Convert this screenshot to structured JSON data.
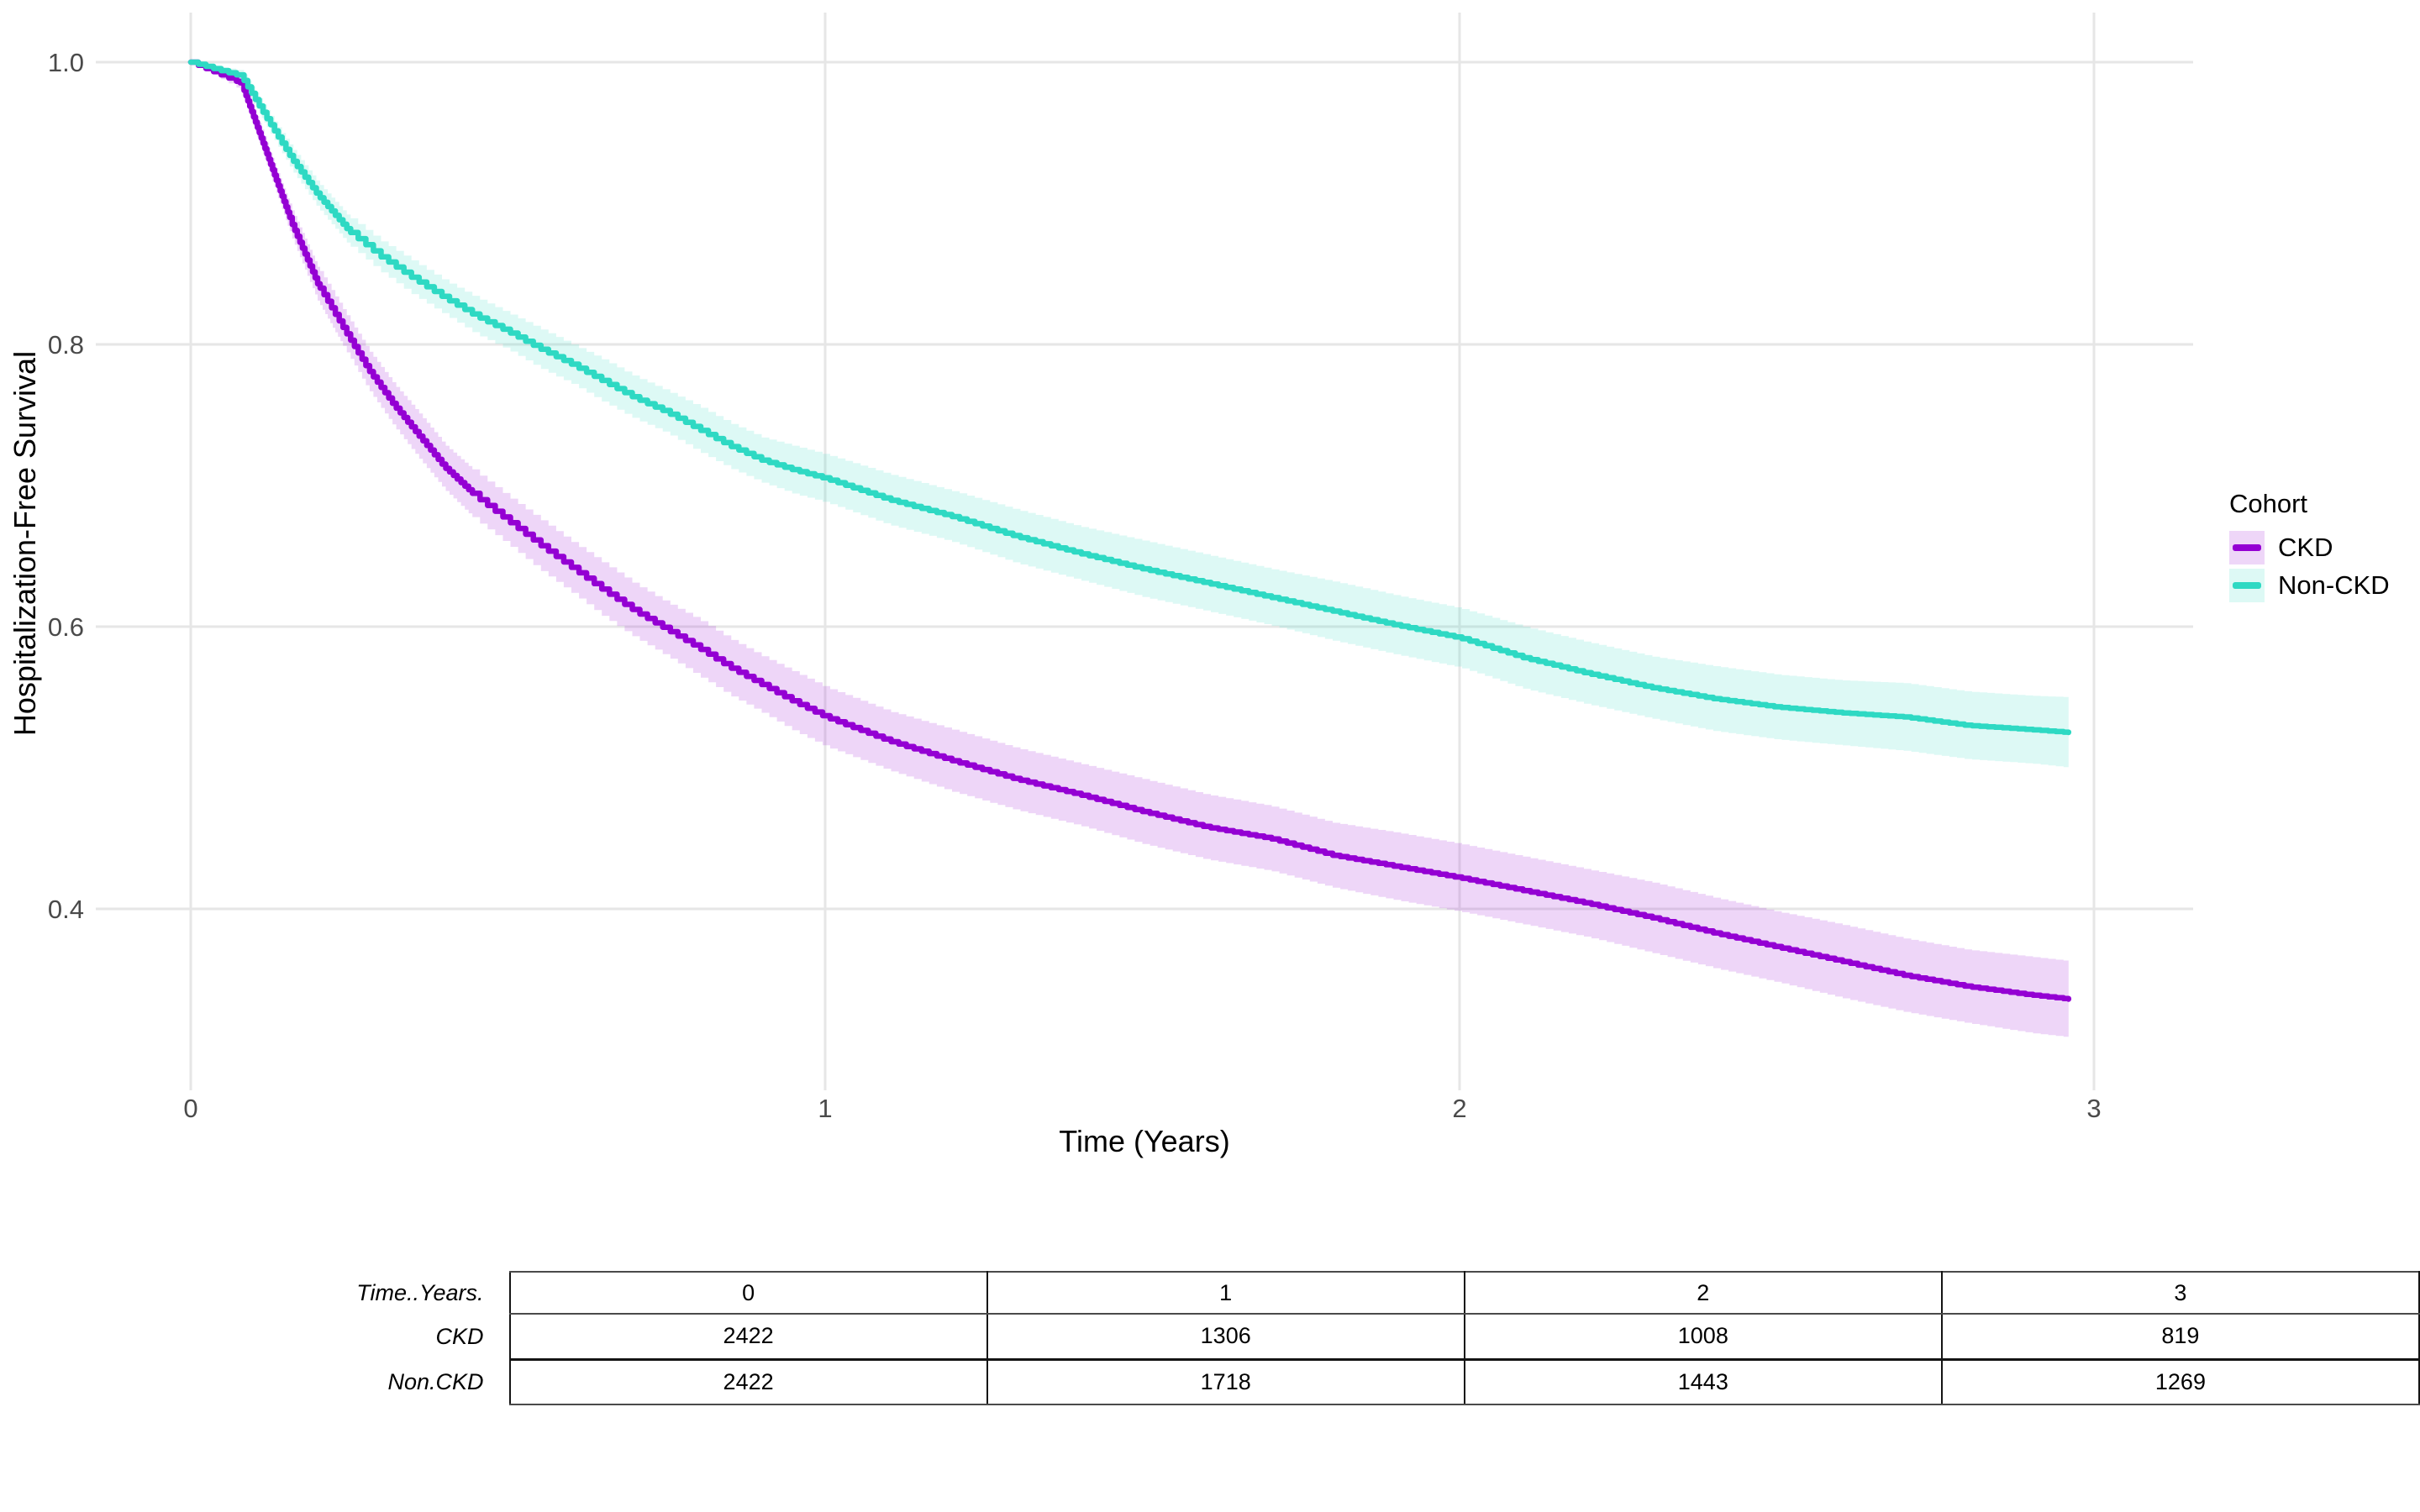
{
  "chart_data": {
    "type": "line",
    "subtype": "kaplan-meier-step-curves-with-confidence-ribbons",
    "title": "",
    "xlabel": "Time (Years)",
    "ylabel": "Hospitalization-Free Survival",
    "xlim": [
      0,
      3.16
    ],
    "ylim": [
      0.28,
      1.0
    ],
    "grid": "on",
    "background": "#ffffff",
    "gridline_color": "#e6e6e6",
    "x_ticks": [
      {
        "value": 0,
        "label": "0"
      },
      {
        "value": 1,
        "label": "1"
      },
      {
        "value": 2,
        "label": "2"
      },
      {
        "value": 3,
        "label": "3"
      }
    ],
    "y_ticks": [
      {
        "value": 1.0,
        "label": "1.0"
      },
      {
        "value": 0.8,
        "label": "0.8"
      },
      {
        "value": 0.6,
        "label": "0.6"
      },
      {
        "value": 0.4,
        "label": "0.4"
      }
    ],
    "legend": {
      "title": "Cohort",
      "position": "right",
      "items": [
        {
          "label": "CKD",
          "color": "#9400d3"
        },
        {
          "label": "Non-CKD",
          "color": "#2ed9c3"
        }
      ]
    },
    "series": [
      {
        "name": "CKD",
        "color": "#9400d3",
        "fill": "rgba(148,0,211,0.16)",
        "x": [
          0,
          0.08,
          0.12,
          0.16,
          0.2,
          0.24,
          0.28,
          0.32,
          0.36,
          0.4,
          0.45,
          0.5,
          0.55,
          0.6,
          0.65,
          0.7,
          0.75,
          0.8,
          0.85,
          0.9,
          0.95,
          1.0,
          1.1,
          1.2,
          1.3,
          1.4,
          1.5,
          1.6,
          1.7,
          1.8,
          1.9,
          2.0,
          2.1,
          2.2,
          2.3,
          2.4,
          2.5,
          2.6,
          2.7,
          2.8,
          2.9,
          2.96
        ],
        "y": [
          1.0,
          0.985,
          0.935,
          0.885,
          0.843,
          0.812,
          0.782,
          0.757,
          0.735,
          0.713,
          0.692,
          0.675,
          0.658,
          0.642,
          0.626,
          0.611,
          0.598,
          0.585,
          0.571,
          0.559,
          0.547,
          0.536,
          0.519,
          0.505,
          0.492,
          0.481,
          0.469,
          0.458,
          0.45,
          0.438,
          0.43,
          0.422,
          0.413,
          0.404,
          0.394,
          0.383,
          0.373,
          0.363,
          0.353,
          0.345,
          0.339,
          0.336
        ],
        "ci": [
          0,
          0.005,
          0.008,
          0.01,
          0.012,
          0.013,
          0.014,
          0.015,
          0.016,
          0.016,
          0.017,
          0.017,
          0.018,
          0.018,
          0.019,
          0.019,
          0.019,
          0.02,
          0.02,
          0.02,
          0.021,
          0.021,
          0.021,
          0.022,
          0.022,
          0.022,
          0.023,
          0.023,
          0.023,
          0.023,
          0.024,
          0.024,
          0.024,
          0.024,
          0.025,
          0.025,
          0.025,
          0.026,
          0.026,
          0.026,
          0.027,
          0.027
        ]
      },
      {
        "name": "Non-CKD",
        "color": "#2ed9c3",
        "fill": "rgba(46,217,195,0.16)",
        "x": [
          0,
          0.08,
          0.12,
          0.16,
          0.2,
          0.25,
          0.3,
          0.35,
          0.4,
          0.45,
          0.5,
          0.55,
          0.6,
          0.65,
          0.7,
          0.75,
          0.8,
          0.85,
          0.9,
          0.95,
          1.0,
          1.1,
          1.2,
          1.3,
          1.4,
          1.5,
          1.6,
          1.7,
          1.8,
          1.9,
          2.0,
          2.1,
          2.2,
          2.3,
          2.4,
          2.5,
          2.6,
          2.7,
          2.8,
          2.9,
          2.96
        ],
        "y": [
          1.0,
          0.99,
          0.96,
          0.931,
          0.906,
          0.88,
          0.862,
          0.847,
          0.833,
          0.82,
          0.809,
          0.797,
          0.786,
          0.774,
          0.762,
          0.752,
          0.74,
          0.728,
          0.718,
          0.711,
          0.705,
          0.69,
          0.678,
          0.664,
          0.652,
          0.641,
          0.631,
          0.621,
          0.611,
          0.601,
          0.592,
          0.578,
          0.567,
          0.557,
          0.549,
          0.543,
          0.539,
          0.536,
          0.53,
          0.527,
          0.525
        ],
        "ci": [
          0,
          0.004,
          0.006,
          0.008,
          0.009,
          0.01,
          0.011,
          0.012,
          0.012,
          0.013,
          0.013,
          0.014,
          0.014,
          0.015,
          0.015,
          0.015,
          0.016,
          0.016,
          0.016,
          0.017,
          0.017,
          0.018,
          0.018,
          0.019,
          0.019,
          0.02,
          0.02,
          0.02,
          0.021,
          0.021,
          0.021,
          0.022,
          0.022,
          0.022,
          0.023,
          0.023,
          0.023,
          0.024,
          0.024,
          0.024,
          0.025
        ]
      }
    ],
    "risk_table": {
      "header_label": "Time..Years.",
      "time_values": [
        "0",
        "1",
        "2",
        "3"
      ],
      "rows": [
        {
          "label": "CKD",
          "values": [
            "2422",
            "1306",
            "1008",
            "819"
          ]
        },
        {
          "label": "Non.CKD",
          "values": [
            "2422",
            "1718",
            "1443",
            "1269"
          ]
        }
      ]
    }
  }
}
